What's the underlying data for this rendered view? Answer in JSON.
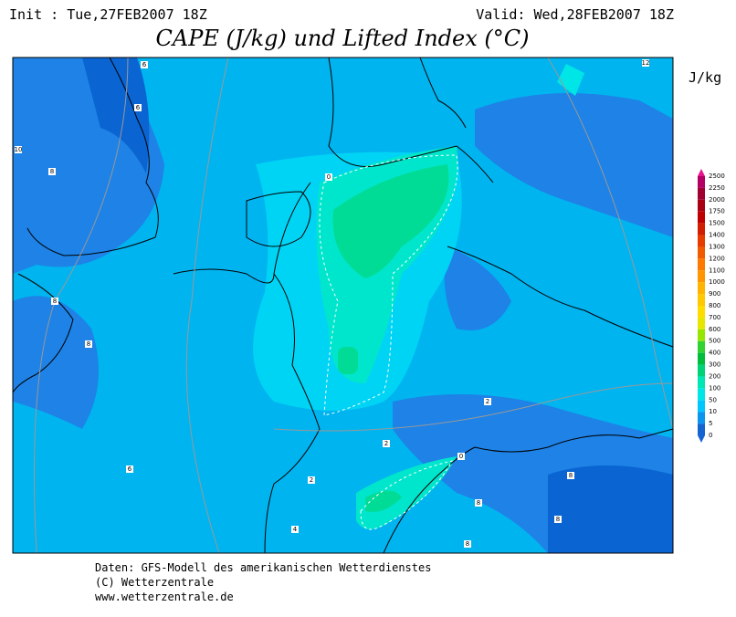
{
  "header": {
    "init": "Init : Tue,27FEB2007 18Z",
    "valid": "Valid: Wed,28FEB2007 18Z",
    "title": "CAPE (J/kg) und Lifted Index (°C)"
  },
  "legend": {
    "unit": "J/kg",
    "levels": [
      "2500",
      "2250",
      "2000",
      "1750",
      "1500",
      "1400",
      "1300",
      "1200",
      "1100",
      "1000",
      "900",
      "800",
      "700",
      "600",
      "500",
      "400",
      "300",
      "200",
      "100",
      "50",
      "10",
      "5",
      "0"
    ],
    "colors": [
      "#e6148c",
      "#b40064",
      "#a00032",
      "#aa0014",
      "#be0000",
      "#d21e00",
      "#e63c00",
      "#f05a00",
      "#ff7800",
      "#ff9600",
      "#ffb400",
      "#ffc800",
      "#ffdc00",
      "#e6e600",
      "#96e600",
      "#32d232",
      "#00be3c",
      "#00d278",
      "#00e6b4",
      "#00e6e6",
      "#00c8ff",
      "#0a96f0",
      "#1464d2"
    ]
  },
  "map": {
    "contour_labels": [
      "6",
      "6",
      "10",
      "8",
      "8",
      "8",
      "0",
      "12",
      "2",
      "2",
      "2",
      "4",
      "0",
      "8",
      "8",
      "8",
      "8",
      "6"
    ]
  },
  "footer": {
    "lines": [
      "Daten: GFS-Modell des amerikanischen Wetterdienstes",
      "(C) Wetterzentrale",
      "www.wetterzentrale.de"
    ]
  }
}
